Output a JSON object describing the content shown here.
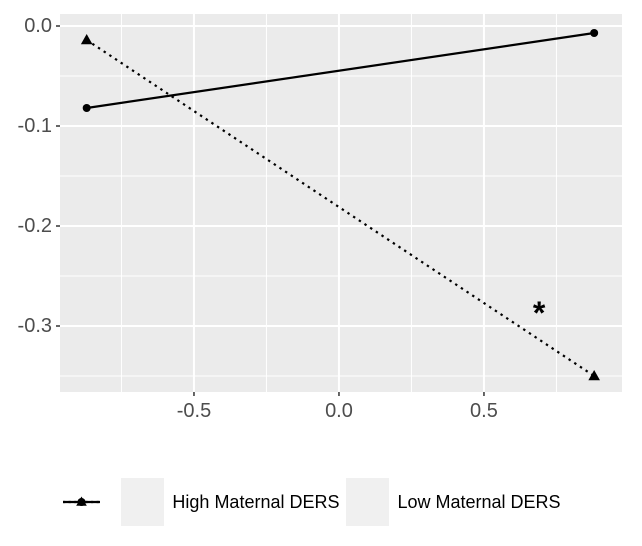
{
  "figure": {
    "type": "interaction-plot",
    "title": ""
  },
  "colors": {
    "background": "#FFFFFF",
    "panel_bg": "#EBEBEB",
    "grid": "#FFFFFF",
    "axis_text": "#4D4D4D",
    "tick_mark": "#333333",
    "series_line": "#000000",
    "annotation": "#000000",
    "legend_key_bg": "#F0F0F0",
    "legend_text": "#000000"
  },
  "chart_data": {
    "type": "line",
    "title": "",
    "xlabel": "",
    "ylabel": "",
    "xlim": [
      -0.962,
      0.976
    ],
    "ylim": [
      -0.366,
      0.012
    ],
    "grid": true,
    "x_ticks": {
      "values": [
        -0.5,
        0.0,
        0.5
      ],
      "labels": [
        "-0.5",
        "0.0",
        "0.5"
      ]
    },
    "y_ticks": {
      "values": [
        0.0,
        -0.1,
        -0.2,
        -0.3
      ],
      "labels": [
        "0.0",
        "-0.1",
        "-0.2",
        "-0.3"
      ]
    },
    "x_minor": [
      -0.75,
      -0.25,
      0.25,
      0.75
    ],
    "y_minor": [
      -0.05,
      -0.15,
      -0.25,
      -0.35
    ],
    "series": [
      {
        "name": "High Maternal DERS",
        "line_style": "solid",
        "marker": "circle",
        "x": [
          -0.87,
          0.88
        ],
        "y": [
          -0.082,
          -0.007
        ]
      },
      {
        "name": "Low Maternal DERS",
        "line_style": "dotted",
        "marker": "triangle",
        "x": [
          -0.87,
          0.88
        ],
        "y": [
          -0.014,
          -0.35
        ]
      }
    ],
    "annotations": [
      {
        "text": "*",
        "x": 0.69,
        "y": -0.282
      }
    ],
    "legend_position": "bottom"
  },
  "legend": {
    "items": [
      {
        "label": "High Maternal DERS",
        "marker": "circle",
        "line_style": "solid"
      },
      {
        "label": "Low Maternal DERS",
        "marker": "triangle",
        "line_style": "dotted"
      }
    ]
  }
}
